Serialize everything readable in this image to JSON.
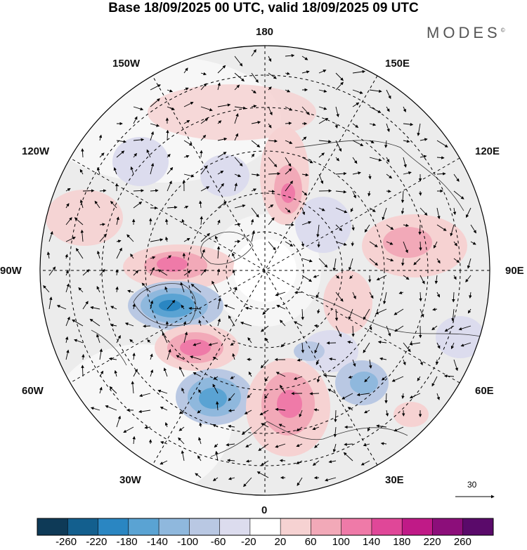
{
  "title": "Base 18/09/2025 00 UTC, valid 18/09/2025 09 UTC",
  "brand": "MODES",
  "brand_mark": "©",
  "longitude_labels": {
    "n180": "180",
    "e150": "150E",
    "e120": "120E",
    "e90": "90E",
    "e60": "60E",
    "e30": "30E",
    "n0": "0",
    "w30": "30W",
    "w60": "60W",
    "w90": "90W",
    "w120": "120W",
    "w150": "150W"
  },
  "reference_vector": "30",
  "colorbar": {
    "labels": [
      "-260",
      "-220",
      "-180",
      "-140",
      "-100",
      "-60",
      "-20",
      "20",
      "60",
      "100",
      "140",
      "180",
      "220",
      "260"
    ],
    "colors": [
      "#0e3a57",
      "#135f8e",
      "#2a86c2",
      "#5aa3d3",
      "#8fb8dd",
      "#b9c8e3",
      "#dcdcee",
      "#ffffff",
      "#f6d2d2",
      "#f2a9b8",
      "#ef7aa8",
      "#e04798",
      "#c01a87",
      "#8c0e7a",
      "#5a0a6a"
    ]
  },
  "anomaly_patches": [
    {
      "kind": "negative",
      "strength": 3
    },
    {
      "kind": "positive",
      "strength": 3
    },
    {
      "kind": "negative",
      "strength": 3
    },
    {
      "kind": "positive",
      "strength": 3
    },
    {
      "kind": "positive",
      "strength": 2
    },
    {
      "kind": "negative",
      "strength": 2
    },
    {
      "kind": "positive",
      "strength": 2
    },
    {
      "kind": "positive",
      "strength": 1
    },
    {
      "kind": "negative",
      "strength": 1
    },
    {
      "kind": "positive",
      "strength": 1
    }
  ]
}
